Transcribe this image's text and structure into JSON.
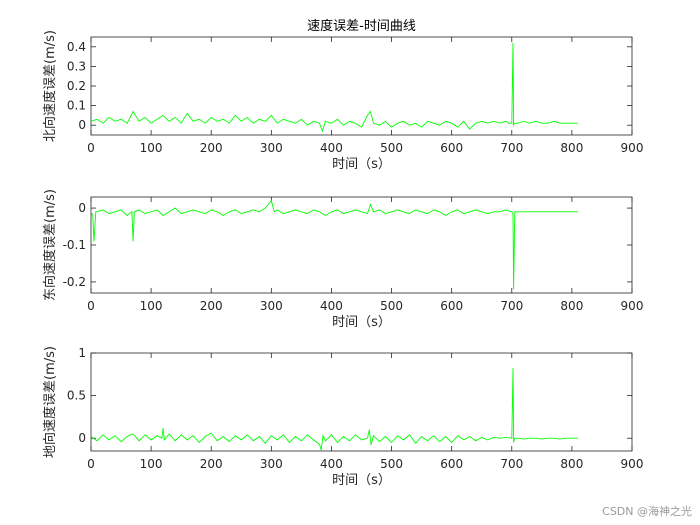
{
  "figure_title": "速度误差-时间曲线",
  "watermark": "CSDN @海神之光",
  "chart_data": [
    {
      "type": "line",
      "title": "速度误差-时间曲线",
      "xlabel": "时间（s）",
      "ylabel": "北向速度误差(m/s)",
      "xlim": [
        0,
        900
      ],
      "ylim": [
        -0.05,
        0.45
      ],
      "xticks": [
        0,
        100,
        200,
        300,
        400,
        500,
        600,
        700,
        800,
        900
      ],
      "yticks": [
        0,
        0.1,
        0.2,
        0.3,
        0.4
      ],
      "ytick_labels": [
        "0",
        "0.1",
        "0.2",
        "0.3",
        "0.4"
      ],
      "grid": false,
      "color": "#00ff00",
      "series": [
        {
          "x": [
            0,
            10,
            20,
            30,
            40,
            50,
            60,
            70,
            80,
            90,
            100,
            110,
            120,
            130,
            140,
            150,
            160,
            170,
            180,
            190,
            200,
            210,
            220,
            230,
            240,
            250,
            260,
            270,
            280,
            290,
            300,
            310,
            320,
            330,
            340,
            350,
            360,
            370,
            380,
            385,
            390,
            400,
            410,
            420,
            430,
            440,
            450,
            460,
            465,
            470,
            480,
            490,
            500,
            510,
            520,
            530,
            540,
            550,
            560,
            570,
            580,
            590,
            600,
            610,
            620,
            630,
            640,
            650,
            660,
            670,
            680,
            690,
            695,
            700,
            702,
            703,
            705,
            710,
            720,
            730,
            740,
            750,
            760,
            770,
            780,
            790,
            800,
            810
          ],
          "y": [
            0.02,
            0.03,
            0.01,
            0.04,
            0.02,
            0.03,
            0.01,
            0.07,
            0.02,
            0.04,
            0.01,
            0.03,
            0.05,
            0.02,
            0.04,
            0.01,
            0.06,
            0.02,
            0.03,
            0.01,
            0.04,
            0.02,
            0.03,
            0.01,
            0.05,
            0.02,
            0.04,
            0.01,
            0.03,
            0.02,
            0.05,
            0.01,
            0.03,
            0.02,
            0.01,
            0.03,
            0.0,
            0.02,
            0.01,
            -0.03,
            0.02,
            0.01,
            0.03,
            0.0,
            0.02,
            0.01,
            -0.01,
            0.05,
            0.07,
            0.01,
            0.0,
            0.02,
            -0.01,
            0.01,
            0.02,
            0.0,
            0.01,
            -0.01,
            0.02,
            0.01,
            0.0,
            0.02,
            0.01,
            -0.01,
            0.02,
            -0.02,
            0.01,
            0.02,
            0.01,
            0.02,
            0.01,
            0.02,
            0.01,
            0.01,
            0.42,
            0.0,
            0.01,
            0.01,
            0.02,
            0.01,
            0.02,
            0.01,
            0.01,
            0.02,
            0.01,
            0.01,
            0.01,
            0.01
          ]
        }
      ]
    },
    {
      "type": "line",
      "title": "",
      "xlabel": "时间（s）",
      "ylabel": "东向速度误差(m/s)",
      "xlim": [
        0,
        900
      ],
      "ylim": [
        -0.23,
        0.03
      ],
      "xticks": [
        0,
        100,
        200,
        300,
        400,
        500,
        600,
        700,
        800,
        900
      ],
      "yticks": [
        0,
        -0.1,
        -0.2
      ],
      "ytick_labels": [
        "0",
        "-0.1",
        "-0.2"
      ],
      "grid": false,
      "color": "#00ff00",
      "series": [
        {
          "x": [
            0,
            3,
            5,
            8,
            10,
            20,
            30,
            40,
            50,
            60,
            68,
            70,
            72,
            80,
            90,
            100,
            110,
            120,
            130,
            140,
            150,
            160,
            170,
            180,
            190,
            200,
            210,
            220,
            230,
            240,
            250,
            260,
            270,
            280,
            290,
            295,
            300,
            305,
            310,
            320,
            330,
            340,
            350,
            360,
            370,
            380,
            390,
            400,
            410,
            420,
            430,
            440,
            450,
            460,
            465,
            470,
            480,
            490,
            500,
            510,
            520,
            530,
            540,
            550,
            560,
            570,
            580,
            590,
            600,
            610,
            620,
            630,
            640,
            650,
            660,
            670,
            680,
            690,
            700,
            702,
            703,
            705,
            710,
            720,
            730,
            740,
            750,
            760,
            770,
            780,
            790,
            800,
            810
          ],
          "y": [
            -0.01,
            -0.02,
            -0.09,
            -0.01,
            -0.01,
            -0.005,
            -0.015,
            -0.01,
            -0.005,
            -0.02,
            -0.01,
            -0.09,
            -0.01,
            -0.005,
            -0.015,
            -0.01,
            -0.005,
            -0.02,
            -0.01,
            0.0,
            -0.015,
            -0.01,
            -0.005,
            -0.01,
            -0.015,
            -0.005,
            -0.01,
            -0.02,
            -0.01,
            -0.005,
            -0.015,
            -0.01,
            -0.005,
            -0.01,
            0.0,
            0.01,
            0.02,
            -0.01,
            -0.005,
            -0.015,
            -0.01,
            -0.005,
            -0.01,
            -0.015,
            -0.005,
            -0.01,
            -0.02,
            -0.01,
            -0.005,
            -0.015,
            -0.01,
            -0.005,
            -0.01,
            -0.015,
            0.01,
            -0.01,
            -0.005,
            -0.015,
            -0.01,
            -0.005,
            -0.01,
            -0.015,
            -0.005,
            -0.01,
            -0.015,
            -0.005,
            -0.01,
            -0.02,
            -0.01,
            -0.005,
            -0.015,
            -0.01,
            -0.005,
            -0.01,
            -0.015,
            -0.01,
            -0.01,
            -0.005,
            -0.01,
            -0.015,
            -0.22,
            -0.01,
            -0.01,
            -0.01,
            -0.01,
            -0.01,
            -0.01,
            -0.01,
            -0.01,
            -0.01,
            -0.01,
            -0.01,
            -0.01
          ]
        }
      ]
    },
    {
      "type": "line",
      "title": "",
      "xlabel": "时间（s）",
      "ylabel": "地向速度误差(m/s)",
      "xlim": [
        0,
        900
      ],
      "ylim": [
        -0.15,
        1.0
      ],
      "xticks": [
        0,
        100,
        200,
        300,
        400,
        500,
        600,
        700,
        800,
        900
      ],
      "yticks": [
        0,
        0.5,
        1
      ],
      "ytick_labels": [
        "0",
        "0.5",
        "1"
      ],
      "grid": false,
      "color": "#00ff00",
      "series": [
        {
          "x": [
            0,
            10,
            20,
            30,
            40,
            50,
            60,
            70,
            80,
            90,
            100,
            110,
            118,
            120,
            122,
            130,
            140,
            150,
            160,
            170,
            180,
            190,
            200,
            210,
            220,
            230,
            240,
            250,
            260,
            270,
            280,
            290,
            300,
            310,
            320,
            330,
            340,
            350,
            360,
            370,
            380,
            383,
            386,
            390,
            400,
            410,
            420,
            430,
            440,
            450,
            460,
            463,
            466,
            470,
            480,
            490,
            500,
            510,
            520,
            530,
            540,
            550,
            560,
            570,
            580,
            590,
            600,
            610,
            620,
            630,
            640,
            650,
            660,
            670,
            680,
            690,
            700,
            702,
            703,
            705,
            710,
            720,
            730,
            740,
            750,
            760,
            770,
            780,
            790,
            800,
            810
          ],
          "y": [
            0.02,
            -0.03,
            0.04,
            -0.02,
            0.03,
            -0.04,
            0.02,
            0.05,
            -0.03,
            0.04,
            -0.02,
            0.03,
            0.0,
            0.12,
            -0.02,
            0.05,
            -0.03,
            0.04,
            -0.02,
            0.03,
            -0.05,
            0.02,
            0.06,
            -0.03,
            0.02,
            -0.04,
            0.03,
            -0.02,
            0.04,
            -0.03,
            0.02,
            -0.06,
            0.03,
            -0.02,
            0.04,
            -0.05,
            0.02,
            -0.03,
            0.04,
            -0.02,
            -0.07,
            -0.14,
            0.03,
            -0.03,
            0.04,
            -0.05,
            0.02,
            -0.03,
            0.04,
            -0.02,
            0.0,
            0.1,
            -0.08,
            0.03,
            -0.04,
            0.02,
            -0.05,
            0.03,
            -0.02,
            0.04,
            -0.06,
            0.02,
            -0.03,
            0.03,
            -0.04,
            0.02,
            -0.05,
            0.03,
            -0.02,
            0.02,
            -0.03,
            0.01,
            -0.02,
            0.01,
            0.0,
            0.01,
            0.0,
            0.82,
            -0.05,
            0.0,
            0.0,
            -0.01,
            0.0,
            0.0,
            -0.01,
            0.0,
            0.0,
            -0.01,
            0.0,
            0.0,
            0.0
          ]
        }
      ]
    }
  ]
}
